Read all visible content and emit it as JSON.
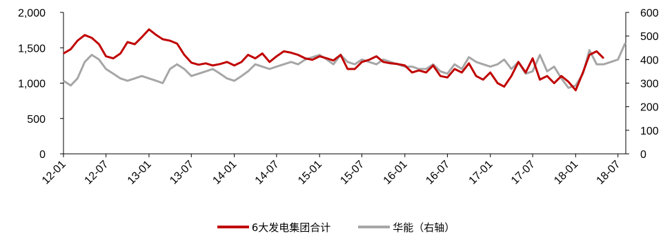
{
  "chart_data": {
    "type": "line",
    "x_ticks": [
      "12-01",
      "12-07",
      "13-01",
      "13-07",
      "14-01",
      "14-07",
      "15-01",
      "15-07",
      "16-01",
      "16-07",
      "17-01",
      "17-07",
      "18-01",
      "18-07"
    ],
    "y_left": {
      "ticks": [
        "0",
        "500",
        "1,000",
        "1,500",
        "2,000"
      ],
      "range": [
        0,
        2000
      ]
    },
    "y_right": {
      "ticks": [
        "0",
        "100",
        "200",
        "300",
        "400",
        "500",
        "600"
      ],
      "range": [
        0,
        600
      ]
    },
    "grid": false,
    "legend_position": "bottom",
    "series": [
      {
        "name": "6大发电集团合计",
        "axis": "left",
        "color": "#C00000",
        "x": [
          "2012-01-01",
          "2012-02-01",
          "2012-03-01",
          "2012-04-01",
          "2012-05-01",
          "2012-06-01",
          "2012-07-01",
          "2012-08-01",
          "2012-09-01",
          "2012-10-01",
          "2012-11-01",
          "2012-12-01",
          "2013-01-01",
          "2013-02-01",
          "2013-03-01",
          "2013-04-01",
          "2013-05-01",
          "2013-06-01",
          "2013-07-01",
          "2013-08-01",
          "2013-09-01",
          "2013-10-01",
          "2013-11-01",
          "2013-12-01",
          "2014-01-01",
          "2014-02-01",
          "2014-03-01",
          "2014-04-01",
          "2014-05-01",
          "2014-06-01",
          "2014-07-01",
          "2014-08-01",
          "2014-09-01",
          "2014-10-01",
          "2014-11-01",
          "2014-12-01",
          "2015-01-01",
          "2015-02-01",
          "2015-03-01",
          "2015-04-01",
          "2015-05-01",
          "2015-06-01",
          "2015-07-01",
          "2015-08-01",
          "2015-09-01",
          "2015-10-01",
          "2015-11-01",
          "2015-12-01",
          "2016-01-01",
          "2016-02-01",
          "2016-03-01",
          "2016-04-01",
          "2016-05-01",
          "2016-06-01",
          "2016-07-01",
          "2016-08-01",
          "2016-09-01",
          "2016-10-01",
          "2016-11-01",
          "2016-12-01",
          "2017-01-01",
          "2017-02-01",
          "2017-03-01",
          "2017-04-01",
          "2017-05-01",
          "2017-06-01",
          "2017-07-01",
          "2017-08-01",
          "2017-09-01",
          "2017-10-01",
          "2017-11-01",
          "2017-12-01",
          "2018-01-01",
          "2018-02-01",
          "2018-03-01",
          "2018-04-01",
          "2018-05-01"
        ],
        "values": [
          1420,
          1480,
          1600,
          1680,
          1640,
          1550,
          1380,
          1350,
          1420,
          1580,
          1550,
          1650,
          1760,
          1680,
          1620,
          1600,
          1560,
          1400,
          1290,
          1260,
          1280,
          1250,
          1270,
          1300,
          1250,
          1300,
          1400,
          1350,
          1420,
          1300,
          1380,
          1450,
          1430,
          1400,
          1350,
          1330,
          1380,
          1350,
          1320,
          1400,
          1200,
          1200,
          1300,
          1330,
          1380,
          1300,
          1280,
          1270,
          1250,
          1150,
          1180,
          1150,
          1250,
          1100,
          1080,
          1200,
          1150,
          1280,
          1100,
          1050,
          1150,
          1000,
          950,
          1100,
          1300,
          1150,
          1350,
          1050,
          1100,
          1000,
          1100,
          1020,
          900,
          1150,
          1400,
          1450,
          1350
        ]
      },
      {
        "name": "华能（右轴）",
        "axis": "right",
        "color": "#A6A6A6",
        "x": [
          "2012-01-01",
          "2012-02-01",
          "2012-03-01",
          "2012-04-01",
          "2012-05-01",
          "2012-06-01",
          "2012-07-01",
          "2012-08-01",
          "2012-09-01",
          "2012-10-01",
          "2012-11-01",
          "2012-12-01",
          "2013-01-01",
          "2013-02-01",
          "2013-03-01",
          "2013-04-01",
          "2013-05-01",
          "2013-06-01",
          "2013-07-01",
          "2013-08-01",
          "2013-09-01",
          "2013-10-01",
          "2013-11-01",
          "2013-12-01",
          "2014-01-01",
          "2014-02-01",
          "2014-03-01",
          "2014-04-01",
          "2014-05-01",
          "2014-06-01",
          "2014-07-01",
          "2014-08-01",
          "2014-09-01",
          "2014-10-01",
          "2014-11-01",
          "2014-12-01",
          "2015-01-01",
          "2015-02-01",
          "2015-03-01",
          "2015-04-01",
          "2015-05-01",
          "2015-06-01",
          "2015-07-01",
          "2015-08-01",
          "2015-09-01",
          "2015-10-01",
          "2015-11-01",
          "2015-12-01",
          "2016-01-01",
          "2016-02-01",
          "2016-03-01",
          "2016-04-01",
          "2016-05-01",
          "2016-06-01",
          "2016-07-01",
          "2016-08-01",
          "2016-09-01",
          "2016-10-01",
          "2016-11-01",
          "2016-12-01",
          "2017-01-01",
          "2017-02-01",
          "2017-03-01",
          "2017-04-01",
          "2017-05-01",
          "2017-06-01",
          "2017-07-01",
          "2017-08-01",
          "2017-09-01",
          "2017-10-01",
          "2017-11-01",
          "2017-12-01",
          "2018-01-01",
          "2018-02-01",
          "2018-03-01",
          "2018-04-01",
          "2018-05-01",
          "2018-06-01",
          "2018-07-01",
          "2018-08-01"
        ],
        "values": [
          310,
          290,
          320,
          390,
          420,
          400,
          360,
          340,
          320,
          310,
          320,
          330,
          320,
          310,
          300,
          360,
          380,
          360,
          330,
          340,
          350,
          360,
          340,
          320,
          310,
          330,
          350,
          380,
          370,
          360,
          370,
          380,
          390,
          380,
          400,
          410,
          420,
          400,
          380,
          420,
          390,
          380,
          400,
          390,
          380,
          400,
          390,
          380,
          370,
          370,
          360,
          360,
          380,
          350,
          340,
          380,
          360,
          410,
          390,
          380,
          370,
          380,
          400,
          360,
          390,
          340,
          350,
          420,
          350,
          370,
          320,
          280,
          290,
          340,
          440,
          380,
          380,
          390,
          400,
          470
        ]
      }
    ]
  }
}
